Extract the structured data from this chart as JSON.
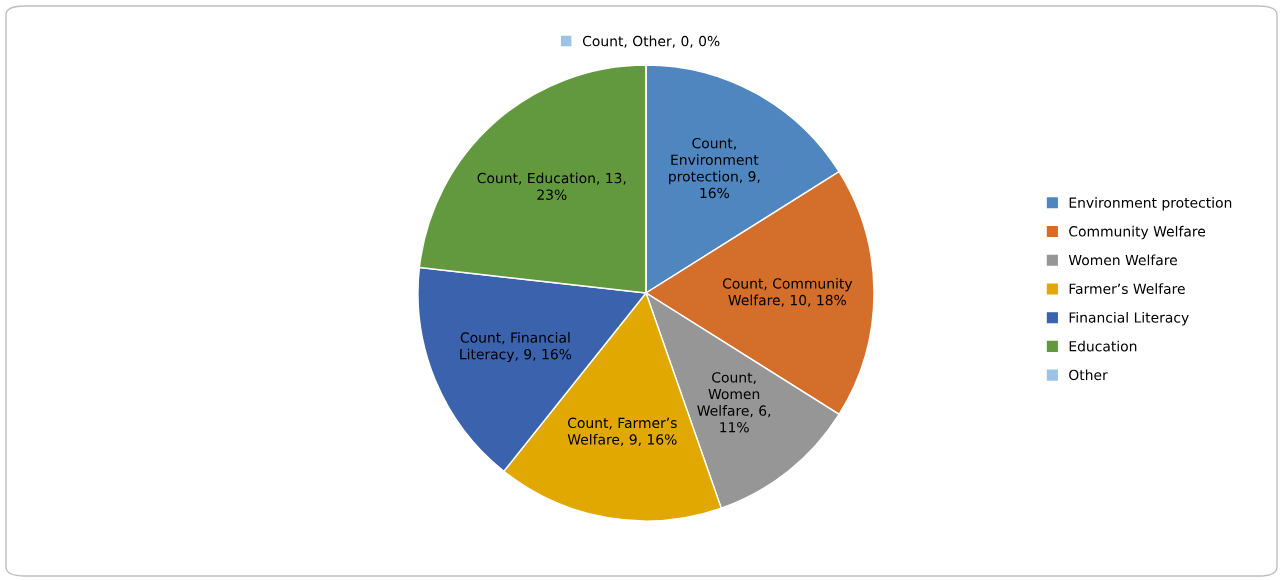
{
  "chart_data": {
    "type": "pie",
    "categories": [
      "Environment protection",
      "Community Welfare",
      "Women Welfare",
      "Farmer’s Welfare",
      "Financial Literacy",
      "Education",
      "Other"
    ],
    "values": [
      9,
      10,
      6,
      9,
      9,
      13,
      0
    ],
    "colors": [
      "#4f86c0",
      "#d46e2b",
      "#969696",
      "#e0a800",
      "#3a62ad",
      "#63993e",
      "#9dc3e6"
    ],
    "value_labels": [
      "Count,\nEnvironment\nprotection, 9,\n16%",
      "Count, Community\nWelfare, 10, 18%",
      "Count,\nWomen\nWelfare, 6,\n11%",
      "Count, Farmer’s\nWelfare, 9, 16%",
      "Count, Financial\nLiteracy, 9, 16%",
      "Count, Education, 13,\n23%",
      "Count, Other, 0, 0%"
    ],
    "legend": "right"
  }
}
